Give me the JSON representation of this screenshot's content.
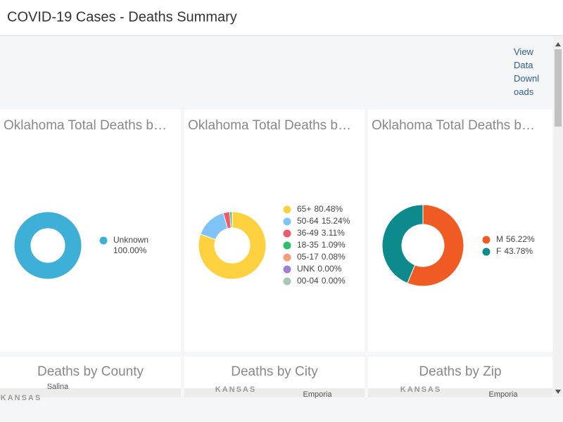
{
  "header": {
    "title": "COVID-19 Cases - Deaths Summary"
  },
  "link": "View Data Downloads",
  "chart_data": [
    {
      "type": "donut",
      "title": "Oklahoma Total Deaths b…",
      "categories": [
        "Unknown"
      ],
      "values": [
        100.0
      ],
      "value_labels": [
        "100.00%"
      ],
      "colors": [
        "#3eb0d8"
      ]
    },
    {
      "type": "donut",
      "title": "Oklahoma Total Deaths b…",
      "categories": [
        "65+",
        "50-64",
        "36-49",
        "18-35",
        "05-17",
        "UNK",
        "00-04"
      ],
      "values": [
        80.48,
        15.24,
        3.11,
        1.09,
        0.08,
        0.0,
        0.0
      ],
      "value_labels": [
        "80.48%",
        "15.24%",
        "3.11%",
        "1.09%",
        "0.08%",
        "0.00%",
        "0.00%"
      ],
      "colors": [
        "#fdd13f",
        "#80c4f7",
        "#ee5b6e",
        "#2dbe6c",
        "#f79d7c",
        "#9e80cf",
        "#a7c6b7"
      ]
    },
    {
      "type": "donut",
      "title": "Oklahoma Total Deaths b…",
      "categories": [
        "M",
        "F"
      ],
      "values": [
        56.22,
        43.78
      ],
      "value_labels": [
        "56.22%",
        "43.78%"
      ],
      "colors": [
        "#f05a23",
        "#0d8a8c"
      ]
    }
  ],
  "maps": [
    {
      "title": "Deaths by County",
      "labels": [
        "Salina",
        "KANSAS"
      ]
    },
    {
      "title": "Deaths by City",
      "labels": [
        "KANSAS",
        "Emporia"
      ]
    },
    {
      "title": "Deaths by Zip",
      "labels": [
        "KANSAS",
        "Emporia"
      ]
    }
  ]
}
